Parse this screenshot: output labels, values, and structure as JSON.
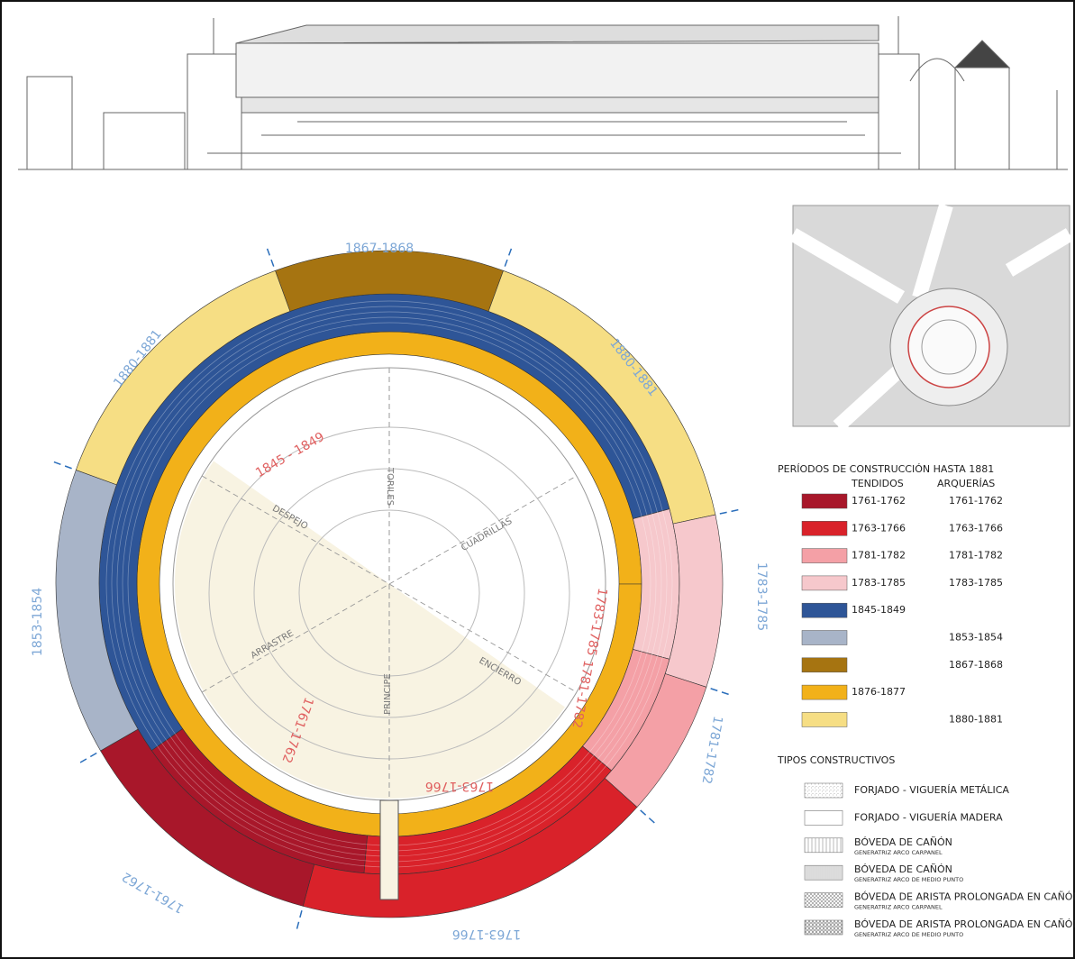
{
  "plan": {
    "outer_labels": [
      "1867-1868",
      "1880-1881",
      "1783-1785",
      "1781-1782",
      "1763-1766",
      "1761-1762",
      "1853-1854",
      "1880-1881"
    ],
    "inner_labels": [
      "1845 - 1849",
      "1783-1785",
      "1781-1782",
      "1761-1762",
      "1763-1766"
    ],
    "axis_labels": [
      "TORILES",
      "CUADRILLAS",
      "ENCIERRO",
      "PRINCIPE",
      "ARRASTRE",
      "DESPEJO"
    ]
  },
  "legend": {
    "title": "PERÍODOS DE CONSTRUCCIÓN HASTA 1881",
    "col_headers": [
      "TENDIDOS",
      "ARQUERÍAS"
    ],
    "rows": [
      {
        "color": "#a8172a",
        "tendidos": "1761-1762",
        "arquerias": "1761-1762"
      },
      {
        "color": "#d9222a",
        "tendidos": "1763-1766",
        "arquerias": "1763-1766"
      },
      {
        "color": "#f4a0a6",
        "tendidos": "1781-1782",
        "arquerias": "1781-1782"
      },
      {
        "color": "#f6c8cc",
        "tendidos": "1783-1785",
        "arquerias": "1783-1785"
      },
      {
        "color": "#2e5597",
        "tendidos": "1845-1849",
        "arquerias": null
      },
      {
        "color": "#a8b4c8",
        "tendidos": null,
        "arquerias": "1853-1854"
      },
      {
        "color": "#a67411",
        "tendidos": null,
        "arquerias": "1867-1868"
      },
      {
        "color": "#f2b119",
        "tendidos": "1876-1877",
        "arquerias": null
      },
      {
        "color": "#f6de84",
        "tendidos": null,
        "arquerias": "1880-1881"
      }
    ]
  },
  "types": {
    "title": "TIPOS CONSTRUCTIVOS",
    "items": [
      {
        "name": "FORJADO - VIGUERÍA METÁLICA",
        "note": null
      },
      {
        "name": "FORJADO - VIGUERÍA MADERA",
        "note": null
      },
      {
        "name": "BÓVEDA DE CAÑÓN",
        "note": "GENERATRIZ ARCO CARPANEL"
      },
      {
        "name": "BÓVEDA DE CAÑÓN",
        "note": "GENERATRIZ ARCO DE MEDIO PUNTO"
      },
      {
        "name": "BÓVEDA DE ARISTA PROLONGADA EN CAÑÓN",
        "note": "GENERATRIZ ARCO CARPANEL"
      },
      {
        "name": "BÓVEDA DE ARISTA PROLONGADA EN CAÑÓN",
        "note": "GENERATRIZ ARCO DE MEDIO PUNTO"
      }
    ]
  }
}
